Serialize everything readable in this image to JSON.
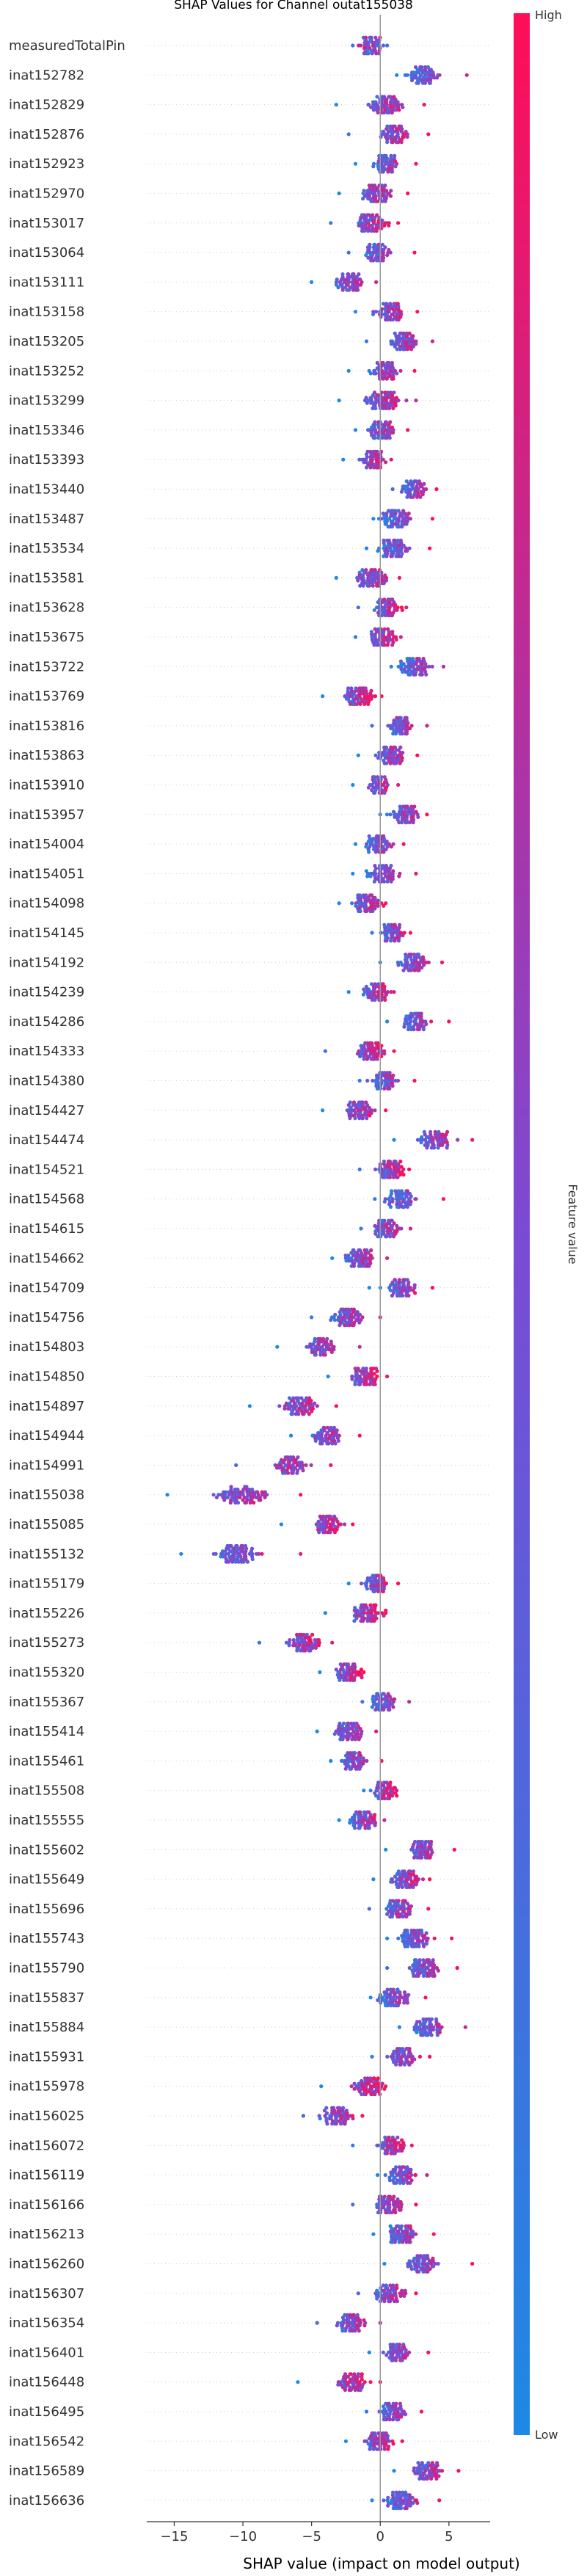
{
  "chart_data": {
    "type": "scatter",
    "title": "SHAP Values for Channel outat155038",
    "xlabel": "SHAP value (impact on model output)",
    "ylabel": "",
    "xlim": [
      -17,
      8
    ],
    "x_ticks": [
      -15,
      -10,
      -5,
      0,
      5
    ],
    "x_tick_labels": [
      "−15",
      "−10",
      "−5",
      "0",
      "5"
    ],
    "colorbar": {
      "label": "Feature value",
      "high_label": "High",
      "low_label": "Low",
      "low_color": "#1e88e5",
      "high_color": "#ff0d57"
    },
    "zero_line": 0,
    "features": [
      {
        "name": "measuredTotalPin",
        "center": -0.6,
        "spread": 1.2,
        "min": -2.0,
        "max": 0.5,
        "corr": 0
      },
      {
        "name": "inat152782",
        "center": 3.2,
        "spread": 1.5,
        "min": 1.2,
        "max": 6.3,
        "corr": 1
      },
      {
        "name": "inat152829",
        "center": 0.4,
        "spread": 1.8,
        "min": -3.2,
        "max": 3.2,
        "corr": 1
      },
      {
        "name": "inat152876",
        "center": 1.0,
        "spread": 1.4,
        "min": -2.3,
        "max": 3.5,
        "corr": 1
      },
      {
        "name": "inat152923",
        "center": 0.3,
        "spread": 1.3,
        "min": -1.8,
        "max": 2.6,
        "corr": 1
      },
      {
        "name": "inat152970",
        "center": -0.3,
        "spread": 1.4,
        "min": -3.0,
        "max": 2.0,
        "corr": 1
      },
      {
        "name": "inat153017",
        "center": -0.6,
        "spread": 1.4,
        "min": -3.6,
        "max": 1.3,
        "corr": 1
      },
      {
        "name": "inat153064",
        "center": -0.2,
        "spread": 1.4,
        "min": -2.3,
        "max": 2.5,
        "corr": 1
      },
      {
        "name": "inat153111",
        "center": -2.2,
        "spread": 1.4,
        "min": -5.0,
        "max": -0.3,
        "corr": 1
      },
      {
        "name": "inat153158",
        "center": 0.7,
        "spread": 1.3,
        "min": -1.8,
        "max": 2.7,
        "corr": 1
      },
      {
        "name": "inat153205",
        "center": 1.8,
        "spread": 1.3,
        "min": -1.0,
        "max": 3.8,
        "corr": 1
      },
      {
        "name": "inat153252",
        "center": 0.3,
        "spread": 1.3,
        "min": -2.3,
        "max": 2.5,
        "corr": 1
      },
      {
        "name": "inat153299",
        "center": 0.2,
        "spread": 1.7,
        "min": -3.0,
        "max": 2.6,
        "corr": 1
      },
      {
        "name": "inat153346",
        "center": 0.1,
        "spread": 1.3,
        "min": -1.8,
        "max": 2.0,
        "corr": 1
      },
      {
        "name": "inat153393",
        "center": -0.5,
        "spread": 1.2,
        "min": -2.7,
        "max": 0.8,
        "corr": 1
      },
      {
        "name": "inat153440",
        "center": 2.5,
        "spread": 1.3,
        "min": 0.9,
        "max": 4.1,
        "corr": 1
      },
      {
        "name": "inat153487",
        "center": 1.2,
        "spread": 1.5,
        "min": -0.5,
        "max": 3.8,
        "corr": 1
      },
      {
        "name": "inat153534",
        "center": 1.0,
        "spread": 1.4,
        "min": -1.0,
        "max": 3.6,
        "corr": 1
      },
      {
        "name": "inat153581",
        "center": -0.6,
        "spread": 1.5,
        "min": -3.2,
        "max": 1.4,
        "corr": 1
      },
      {
        "name": "inat153628",
        "center": 0.5,
        "spread": 1.3,
        "min": -1.6,
        "max": 1.9,
        "corr": 1
      },
      {
        "name": "inat153675",
        "center": 0.2,
        "spread": 1.3,
        "min": -1.8,
        "max": 1.5,
        "corr": 1
      },
      {
        "name": "inat153722",
        "center": 2.5,
        "spread": 1.4,
        "min": 0.8,
        "max": 4.6,
        "corr": 1
      },
      {
        "name": "inat153769",
        "center": -1.5,
        "spread": 1.4,
        "min": -4.2,
        "max": 0.1,
        "corr": 1
      },
      {
        "name": "inat153816",
        "center": 1.5,
        "spread": 1.2,
        "min": -0.6,
        "max": 3.4,
        "corr": 1
      },
      {
        "name": "inat153863",
        "center": 0.8,
        "spread": 1.3,
        "min": -1.6,
        "max": 2.7,
        "corr": 1
      },
      {
        "name": "inat153910",
        "center": -0.1,
        "spread": 1.2,
        "min": -2.0,
        "max": 1.3,
        "corr": 1
      },
      {
        "name": "inat153957",
        "center": 1.8,
        "spread": 1.3,
        "min": 0.0,
        "max": 3.4,
        "corr": 1
      },
      {
        "name": "inat154004",
        "center": -0.1,
        "spread": 1.3,
        "min": -1.8,
        "max": 1.7,
        "corr": 1
      },
      {
        "name": "inat154051",
        "center": 0.1,
        "spread": 1.5,
        "min": -2.0,
        "max": 2.6,
        "corr": 1
      },
      {
        "name": "inat154098",
        "center": -1.0,
        "spread": 1.3,
        "min": -3.0,
        "max": 0.4,
        "corr": 1
      },
      {
        "name": "inat154145",
        "center": 0.9,
        "spread": 1.2,
        "min": -0.6,
        "max": 2.2,
        "corr": 1
      },
      {
        "name": "inat154192",
        "center": 2.4,
        "spread": 1.5,
        "min": 0.0,
        "max": 4.5,
        "corr": 1
      },
      {
        "name": "inat154239",
        "center": -0.2,
        "spread": 1.4,
        "min": -2.3,
        "max": 1.0,
        "corr": 1
      },
      {
        "name": "inat154286",
        "center": 2.6,
        "spread": 1.3,
        "min": 0.5,
        "max": 5.0,
        "corr": 1
      },
      {
        "name": "inat154333",
        "center": -0.6,
        "spread": 1.5,
        "min": -4.0,
        "max": 1.0,
        "corr": 1
      },
      {
        "name": "inat154380",
        "center": 0.3,
        "spread": 1.3,
        "min": -1.5,
        "max": 2.5,
        "corr": 1
      },
      {
        "name": "inat154427",
        "center": -1.5,
        "spread": 1.4,
        "min": -4.2,
        "max": 0.4,
        "corr": 1
      },
      {
        "name": "inat154474",
        "center": 4.0,
        "spread": 1.5,
        "min": 1.0,
        "max": 6.7,
        "corr": 1
      },
      {
        "name": "inat154521",
        "center": 0.7,
        "spread": 1.3,
        "min": -1.5,
        "max": 2.1,
        "corr": 1
      },
      {
        "name": "inat154568",
        "center": 1.5,
        "spread": 1.5,
        "min": -0.4,
        "max": 4.6,
        "corr": 1
      },
      {
        "name": "inat154615",
        "center": 0.5,
        "spread": 1.4,
        "min": -1.4,
        "max": 2.2,
        "corr": 1
      },
      {
        "name": "inat154662",
        "center": -1.5,
        "spread": 1.4,
        "min": -3.5,
        "max": 0.5,
        "corr": 1
      },
      {
        "name": "inat154709",
        "center": 1.6,
        "spread": 1.6,
        "min": -0.8,
        "max": 3.8,
        "corr": 1
      },
      {
        "name": "inat154756",
        "center": -2.3,
        "spread": 1.5,
        "min": -5.0,
        "max": 0.0,
        "corr": 1
      },
      {
        "name": "inat154803",
        "center": -4.3,
        "spread": 1.5,
        "min": -7.5,
        "max": -1.5,
        "corr": 1
      },
      {
        "name": "inat154850",
        "center": -1.2,
        "spread": 1.4,
        "min": -3.8,
        "max": 0.5,
        "corr": 1
      },
      {
        "name": "inat154897",
        "center": -5.8,
        "spread": 1.6,
        "min": -9.5,
        "max": -3.2,
        "corr": 1
      },
      {
        "name": "inat154944",
        "center": -3.8,
        "spread": 1.5,
        "min": -6.5,
        "max": -1.5,
        "corr": 1
      },
      {
        "name": "inat154991",
        "center": -6.5,
        "spread": 1.6,
        "min": -10.5,
        "max": -3.6,
        "corr": 1
      },
      {
        "name": "inat155038",
        "center": -10.0,
        "spread": 2.5,
        "min": -15.5,
        "max": -5.8,
        "corr": 1
      },
      {
        "name": "inat155085",
        "center": -3.8,
        "spread": 1.5,
        "min": -7.2,
        "max": -2.0,
        "corr": 1
      },
      {
        "name": "inat155132",
        "center": -10.5,
        "spread": 2.3,
        "min": -14.5,
        "max": -5.8,
        "corr": 1
      },
      {
        "name": "inat155179",
        "center": -0.3,
        "spread": 1.2,
        "min": -2.3,
        "max": 1.3,
        "corr": 1
      },
      {
        "name": "inat155226",
        "center": -1.0,
        "spread": 1.4,
        "min": -4.0,
        "max": 0.4,
        "corr": 1
      },
      {
        "name": "inat155273",
        "center": -5.5,
        "spread": 1.7,
        "min": -8.8,
        "max": -3.5,
        "corr": 1
      },
      {
        "name": "inat155320",
        "center": -2.3,
        "spread": 1.2,
        "min": -4.4,
        "max": -1.2,
        "corr": 1
      },
      {
        "name": "inat155367",
        "center": 0.1,
        "spread": 1.2,
        "min": -1.3,
        "max": 2.1,
        "corr": 1
      },
      {
        "name": "inat155414",
        "center": -2.3,
        "spread": 1.4,
        "min": -4.6,
        "max": -0.3,
        "corr": 1
      },
      {
        "name": "inat155461",
        "center": -1.8,
        "spread": 1.3,
        "min": -3.6,
        "max": 0.1,
        "corr": 1
      },
      {
        "name": "inat155508",
        "center": 0.3,
        "spread": 1.2,
        "min": -1.2,
        "max": 1.2,
        "corr": 1
      },
      {
        "name": "inat155555",
        "center": -1.2,
        "spread": 1.3,
        "min": -3.0,
        "max": 0.3,
        "corr": 1
      },
      {
        "name": "inat155602",
        "center": 3.0,
        "spread": 1.4,
        "min": 0.4,
        "max": 5.4,
        "corr": 1
      },
      {
        "name": "inat155649",
        "center": 1.8,
        "spread": 1.5,
        "min": -0.5,
        "max": 3.6,
        "corr": 1
      },
      {
        "name": "inat155696",
        "center": 1.4,
        "spread": 1.4,
        "min": -0.8,
        "max": 3.5,
        "corr": 1
      },
      {
        "name": "inat155743",
        "center": 2.5,
        "spread": 1.5,
        "min": 0.5,
        "max": 5.2,
        "corr": 1
      },
      {
        "name": "inat155790",
        "center": 3.2,
        "spread": 1.6,
        "min": 0.5,
        "max": 5.6,
        "corr": 1
      },
      {
        "name": "inat155837",
        "center": 1.0,
        "spread": 1.4,
        "min": -0.7,
        "max": 3.3,
        "corr": 1
      },
      {
        "name": "inat155884",
        "center": 3.5,
        "spread": 1.6,
        "min": 1.4,
        "max": 6.2,
        "corr": 1
      },
      {
        "name": "inat155931",
        "center": 1.6,
        "spread": 1.5,
        "min": -0.6,
        "max": 3.6,
        "corr": 1
      },
      {
        "name": "inat155978",
        "center": -0.8,
        "spread": 1.4,
        "min": -4.3,
        "max": 0.4,
        "corr": 1
      },
      {
        "name": "inat156025",
        "center": -3.2,
        "spread": 1.4,
        "min": -5.6,
        "max": -1.3,
        "corr": 1
      },
      {
        "name": "inat156072",
        "center": 0.8,
        "spread": 1.3,
        "min": -2.0,
        "max": 2.3,
        "corr": 1
      },
      {
        "name": "inat156119",
        "center": 1.6,
        "spread": 1.4,
        "min": -0.2,
        "max": 3.4,
        "corr": 1
      },
      {
        "name": "inat156166",
        "center": 0.6,
        "spread": 1.4,
        "min": -2.0,
        "max": 2.6,
        "corr": 1
      },
      {
        "name": "inat156213",
        "center": 1.6,
        "spread": 1.4,
        "min": -0.5,
        "max": 3.9,
        "corr": 1
      },
      {
        "name": "inat156260",
        "center": 3.2,
        "spread": 1.6,
        "min": 0.3,
        "max": 6.7,
        "corr": 1
      },
      {
        "name": "inat156307",
        "center": 0.7,
        "spread": 1.4,
        "min": -1.6,
        "max": 2.6,
        "corr": 1
      },
      {
        "name": "inat156354",
        "center": -2.1,
        "spread": 1.4,
        "min": -4.6,
        "max": 0.0,
        "corr": 1
      },
      {
        "name": "inat156401",
        "center": 1.2,
        "spread": 1.4,
        "min": -0.8,
        "max": 3.5,
        "corr": 1
      },
      {
        "name": "inat156448",
        "center": -2.0,
        "spread": 1.5,
        "min": -6.0,
        "max": 0.0,
        "corr": 1
      },
      {
        "name": "inat156495",
        "center": 0.9,
        "spread": 1.4,
        "min": -1.0,
        "max": 3.0,
        "corr": 1
      },
      {
        "name": "inat156542",
        "center": -0.1,
        "spread": 1.3,
        "min": -2.5,
        "max": 1.6,
        "corr": 1
      },
      {
        "name": "inat156589",
        "center": 3.5,
        "spread": 1.5,
        "min": 1.0,
        "max": 5.7,
        "corr": 1
      },
      {
        "name": "inat156636",
        "center": 1.5,
        "spread": 1.5,
        "min": -0.6,
        "max": 4.3,
        "corr": 1
      }
    ]
  }
}
